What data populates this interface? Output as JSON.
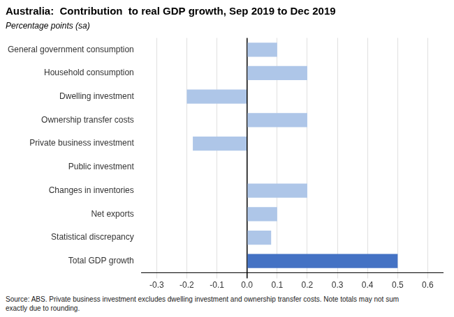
{
  "chart_data": {
    "type": "bar",
    "orientation": "horizontal",
    "title": "Australia:  Contribution  to real GDP growth, Sep 2019 to Dec 2019",
    "subtitle": "Percentage points (sa)",
    "categories": [
      "Total GDP growth",
      "Statistical discrepancy",
      "Net exports",
      "Changes in inventories",
      "Public investment",
      "Private business investment",
      "Ownership transfer costs",
      "Dwelling investment",
      "Household consumption",
      "General government consumption"
    ],
    "values": [
      0.5,
      0.08,
      0.1,
      0.2,
      0.0,
      -0.18,
      0.2,
      -0.2,
      0.2,
      0.1
    ],
    "colors": [
      "#4472C4",
      "#aec6e8",
      "#aec6e8",
      "#aec6e8",
      "#aec6e8",
      "#aec6e8",
      "#aec6e8",
      "#aec6e8",
      "#aec6e8",
      "#aec6e8"
    ],
    "xlim": [
      -0.35,
      0.65
    ],
    "xticks": [
      -0.3,
      -0.2,
      -0.1,
      {
        "value": 0,
        "label": "0.0"
      },
      0.1,
      0.2,
      0.3,
      0.4,
      0.5,
      0.6
    ],
    "grid": true,
    "annotations": [
      "Source: ABS. Private business investment excludes dwelling investment and ownership transfer costs. Note totals may not sum\nexactly due to rounding."
    ]
  }
}
